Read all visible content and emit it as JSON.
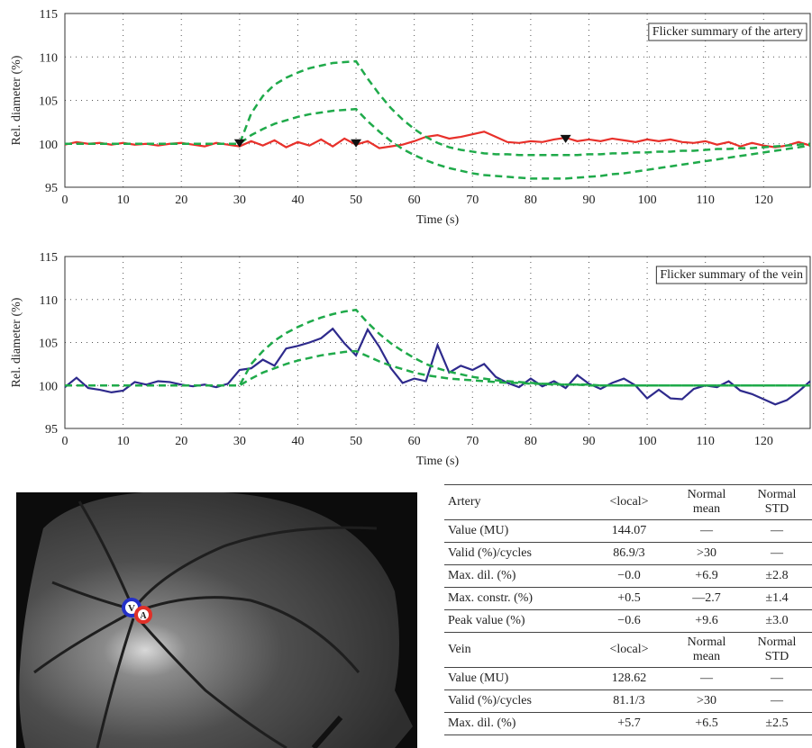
{
  "chart_data": [
    {
      "type": "line",
      "ylabel": "Rel. diameter (%)",
      "xlabel": "Time (s)",
      "annotation": "Flicker summary of the artery",
      "xlim": [
        0,
        128
      ],
      "ylim": [
        95,
        115
      ],
      "xticks": [
        0,
        10,
        20,
        30,
        40,
        50,
        60,
        70,
        80,
        90,
        100,
        110,
        120
      ],
      "yticks": [
        95,
        100,
        105,
        110,
        115
      ],
      "grid": true,
      "x": [
        0,
        2,
        4,
        6,
        8,
        10,
        12,
        14,
        16,
        18,
        20,
        22,
        24,
        26,
        28,
        30,
        32,
        34,
        36,
        38,
        40,
        42,
        44,
        46,
        48,
        50,
        52,
        54,
        56,
        58,
        60,
        62,
        64,
        66,
        68,
        70,
        72,
        74,
        76,
        78,
        80,
        82,
        84,
        86,
        88,
        90,
        92,
        94,
        96,
        98,
        100,
        102,
        104,
        106,
        108,
        110,
        112,
        114,
        116,
        118,
        120,
        122,
        124,
        126,
        128
      ],
      "series": [
        {
          "color": "#e8302a",
          "dash": false,
          "values": [
            99.9,
            100.2,
            100.0,
            100.1,
            99.9,
            100.1,
            99.9,
            100.0,
            99.8,
            100.0,
            100.1,
            99.9,
            99.7,
            100.1,
            99.9,
            99.7,
            100.3,
            99.8,
            100.4,
            99.6,
            100.2,
            99.8,
            100.5,
            99.7,
            100.6,
            99.9,
            100.3,
            99.5,
            99.7,
            99.9,
            100.3,
            100.8,
            101.0,
            100.6,
            100.8,
            101.1,
            101.4,
            100.8,
            100.2,
            100.1,
            100.3,
            100.2,
            100.5,
            100.7,
            100.3,
            100.5,
            100.3,
            100.6,
            100.4,
            100.2,
            100.5,
            100.3,
            100.5,
            100.2,
            100.1,
            100.3,
            99.9,
            100.2,
            99.7,
            100.1,
            99.8,
            99.6,
            99.8,
            100.2,
            99.8
          ]
        },
        {
          "color": "#1faa4a",
          "dash": true,
          "values": [
            100,
            100,
            100,
            100,
            100,
            100,
            100,
            100,
            100,
            100,
            100,
            100,
            100,
            100,
            100,
            100,
            103.5,
            105.5,
            106.8,
            107.6,
            108.2,
            108.7,
            109.0,
            109.3,
            109.4,
            109.5,
            107.5,
            105.7,
            104.1,
            102.8,
            101.7,
            100.8,
            100.1,
            99.6,
            99.3,
            99.1,
            98.9,
            98.8,
            98.8,
            98.7,
            98.7,
            98.7,
            98.7,
            98.7,
            98.7,
            98.8,
            98.8,
            98.9,
            98.9,
            99.0,
            99.0,
            99.1,
            99.1,
            99.2,
            99.2,
            99.3,
            99.4,
            99.4,
            99.5,
            99.5,
            99.6,
            99.7,
            99.8,
            99.9,
            100.0
          ]
        },
        {
          "color": "#1faa4a",
          "dash": true,
          "values": [
            100,
            100,
            100,
            100,
            100,
            100,
            100,
            100,
            100,
            100,
            100,
            100,
            100,
            100,
            100,
            100,
            101.0,
            101.7,
            102.3,
            102.7,
            103.1,
            103.4,
            103.6,
            103.8,
            103.9,
            104.0,
            102.6,
            101.4,
            100.3,
            99.4,
            98.7,
            98.1,
            97.6,
            97.2,
            96.9,
            96.6,
            96.4,
            96.3,
            96.2,
            96.1,
            96.0,
            96.0,
            96.0,
            96.0,
            96.1,
            96.2,
            96.3,
            96.5,
            96.6,
            96.8,
            97.0,
            97.2,
            97.4,
            97.6,
            97.8,
            98.0,
            98.2,
            98.4,
            98.6,
            98.8,
            99.0,
            99.2,
            99.4,
            99.6,
            99.8
          ]
        }
      ],
      "markers": {
        "color": "#111",
        "x": [
          30,
          50,
          86
        ],
        "values": [
          100,
          100,
          100.5
        ]
      }
    },
    {
      "type": "line",
      "ylabel": "Rel. diameter (%)",
      "xlabel": "Time (s)",
      "annotation": "Flicker summary of the vein",
      "xlim": [
        0,
        128
      ],
      "ylim": [
        95,
        115
      ],
      "xticks": [
        0,
        10,
        20,
        30,
        40,
        50,
        60,
        70,
        80,
        90,
        100,
        110,
        120
      ],
      "yticks": [
        95,
        100,
        105,
        110,
        115
      ],
      "grid": true,
      "x": [
        0,
        2,
        4,
        6,
        8,
        10,
        12,
        14,
        16,
        18,
        20,
        22,
        24,
        26,
        28,
        30,
        32,
        34,
        36,
        38,
        40,
        42,
        44,
        46,
        48,
        50,
        52,
        54,
        56,
        58,
        60,
        62,
        64,
        66,
        68,
        70,
        72,
        74,
        76,
        78,
        80,
        82,
        84,
        86,
        88,
        90,
        92,
        94,
        96,
        98,
        100,
        102,
        104,
        106,
        108,
        110,
        112,
        114,
        116,
        118,
        120,
        122,
        124,
        126,
        128
      ],
      "series": [
        {
          "color": "#2e2a8c",
          "dash": false,
          "values": [
            99.8,
            100.9,
            99.7,
            99.5,
            99.2,
            99.4,
            100.4,
            100.1,
            100.5,
            100.4,
            100.1,
            99.9,
            100.1,
            99.8,
            100.2,
            101.8,
            102.0,
            103.0,
            102.3,
            104.3,
            104.6,
            105.0,
            105.5,
            106.6,
            104.9,
            103.5,
            106.5,
            104.5,
            102.0,
            100.3,
            100.8,
            100.5,
            104.7,
            101.5,
            102.3,
            101.8,
            102.5,
            101.0,
            100.3,
            99.8,
            100.8,
            99.9,
            100.5,
            99.7,
            101.2,
            100.2,
            99.6,
            100.3,
            100.8,
            100.0,
            98.5,
            99.5,
            98.5,
            98.4,
            99.6,
            100.0,
            99.8,
            100.5,
            99.4,
            99.0,
            98.4,
            97.8,
            98.3,
            99.3,
            100.5
          ]
        },
        {
          "color": "#1faa4a",
          "dash": true,
          "values": [
            100,
            100,
            100,
            100,
            100,
            100,
            100,
            100,
            100,
            100,
            100,
            100,
            100,
            100,
            100,
            100,
            102.5,
            104.0,
            105.2,
            106.1,
            106.8,
            107.4,
            107.9,
            108.3,
            108.6,
            108.8,
            107.3,
            106.0,
            104.9,
            104.0,
            103.2,
            102.5,
            102.0,
            101.6,
            101.3,
            101.0,
            100.8,
            100.6,
            100.5,
            100.4,
            100.3,
            100.2,
            100.2,
            100.1,
            100.1,
            100.0,
            100.0,
            100.0,
            100.0,
            100.0,
            100.0,
            100.0,
            100.0,
            100.0,
            100.0,
            100.0,
            100.0,
            100.0,
            100.0,
            100.0,
            100.0,
            100.0,
            100.0,
            100.0,
            100.0
          ]
        },
        {
          "color": "#1faa4a",
          "dash": true,
          "values": [
            100,
            100,
            100,
            100,
            100,
            100,
            100,
            100,
            100,
            100,
            100,
            100,
            100,
            100,
            100,
            100,
            100.8,
            101.5,
            102.0,
            102.5,
            102.9,
            103.2,
            103.5,
            103.7,
            103.9,
            104.0,
            103.4,
            102.8,
            102.3,
            101.9,
            101.5,
            101.2,
            101.0,
            100.8,
            100.7,
            100.6,
            100.5,
            100.4,
            100.3,
            100.3,
            100.2,
            100.2,
            100.1,
            100.1,
            100.1,
            100.1,
            100.0,
            100.0,
            100.0,
            100.0,
            100.0,
            100.0,
            100.0,
            100.0,
            100.0,
            100.0,
            100.0,
            100.0,
            100.0,
            100.0,
            100.0,
            100.0,
            100.0,
            100.0,
            100.0
          ]
        }
      ]
    }
  ],
  "image": {
    "labels": [
      "V",
      "A"
    ]
  },
  "table": {
    "sections": [
      {
        "header": [
          "Artery",
          "<local>",
          "Normal mean",
          "Normal STD"
        ],
        "rows": [
          [
            "Value (MU)",
            "144.07",
            "—",
            "—"
          ],
          [
            "Valid (%)/cycles",
            "86.9/3",
            ">30",
            "—"
          ],
          [
            "Max. dil. (%)",
            "−0.0",
            "+6.9",
            "±2.8"
          ],
          [
            "Max. constr. (%)",
            "+0.5",
            "—2.7",
            "±1.4"
          ],
          [
            "Peak value (%)",
            "−0.6",
            "+9.6",
            "±3.0"
          ]
        ]
      },
      {
        "header": [
          "Vein",
          "<local>",
          "Normal mean",
          "Normal STD"
        ],
        "rows": [
          [
            "Value (MU)",
            "128.62",
            "—",
            "—"
          ],
          [
            "Valid (%)/cycles",
            "81.1/3",
            ">30",
            "—"
          ],
          [
            "Max. dil. (%)",
            "+5.7",
            "+6.5",
            "±2.5"
          ]
        ]
      }
    ]
  }
}
